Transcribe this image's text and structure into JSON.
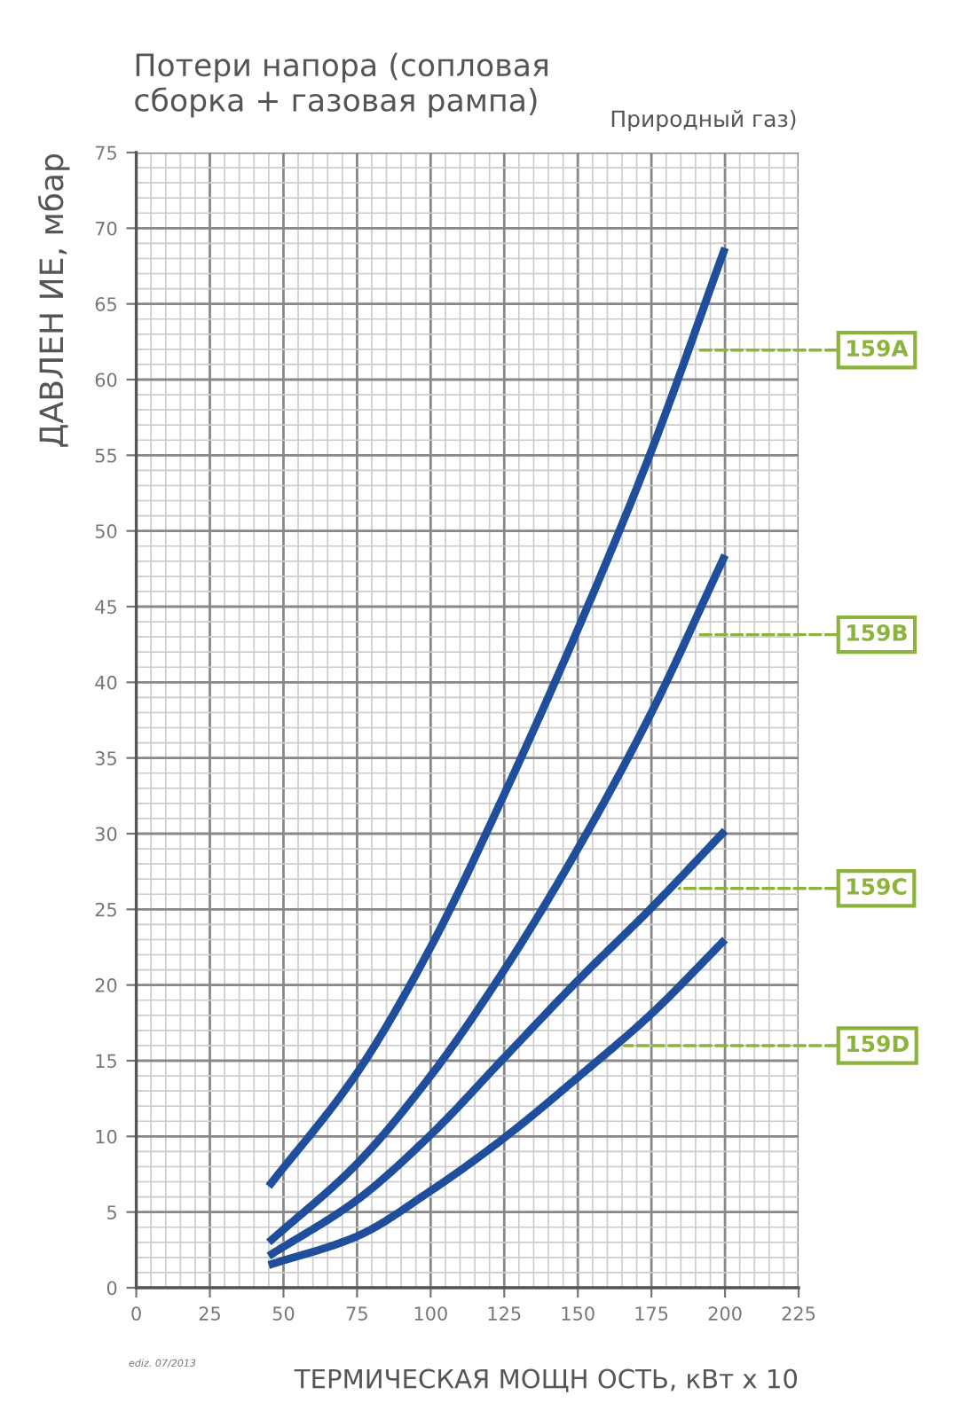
{
  "chart_data": {
    "type": "line",
    "title": "Потери напора (сопловая\nсборка + газовая рампа)",
    "subtitle": "Природный газ)",
    "xlabel": "ТЕРМИЧЕСКАЯ МОЩН ОСТЬ, кВт х 10",
    "ylabel": "ДАВЛЕН ИЕ, мбар",
    "xlim": [
      0,
      225
    ],
    "ylim": [
      0,
      75
    ],
    "xticks": [
      0,
      25,
      50,
      75,
      100,
      125,
      150,
      175,
      200,
      225
    ],
    "yticks": [
      0,
      5,
      10,
      15,
      20,
      25,
      30,
      35,
      40,
      45,
      50,
      55,
      60,
      65,
      70,
      75
    ],
    "grid": true,
    "marker": "none",
    "line_style": "solid",
    "series": [
      {
        "name": "159A",
        "color": "#1f4e9c",
        "x": [
          45,
          75,
          100,
          125,
          150,
          175,
          200
        ],
        "values": [
          6.7,
          14.2,
          22.5,
          32.6,
          43.5,
          55.3,
          68.7
        ]
      },
      {
        "name": "159B",
        "color": "#1f4e9c",
        "x": [
          45,
          75,
          100,
          125,
          150,
          175,
          200
        ],
        "values": [
          3.0,
          8.2,
          14.0,
          21.0,
          29.0,
          38.0,
          48.4
        ]
      },
      {
        "name": "159C",
        "color": "#1f4e9c",
        "x": [
          45,
          75,
          100,
          125,
          150,
          175,
          200
        ],
        "values": [
          2.1,
          5.8,
          10.1,
          15.2,
          20.3,
          25.1,
          30.2
        ]
      },
      {
        "name": "159D",
        "color": "#1f4e9c",
        "x": [
          45,
          75,
          100,
          125,
          150,
          175,
          200
        ],
        "values": [
          1.5,
          3.4,
          6.4,
          9.9,
          13.9,
          18.1,
          23.0
        ]
      }
    ],
    "annotations": [
      "ediz. 07/2013"
    ]
  }
}
